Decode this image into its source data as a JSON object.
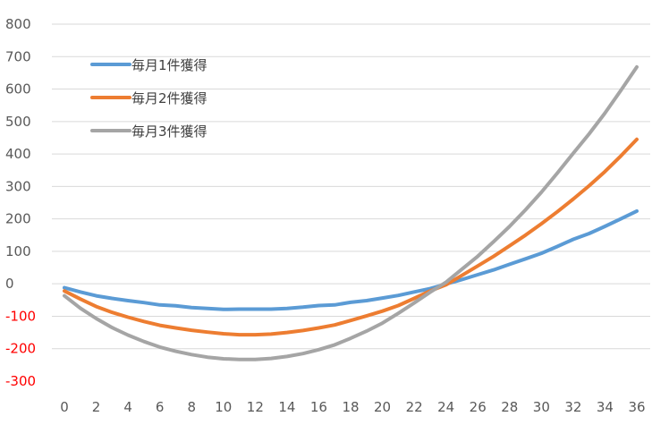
{
  "chart_data": {
    "type": "line",
    "title": "",
    "xlabel": "",
    "ylabel": "",
    "x": [
      0,
      1,
      2,
      3,
      4,
      5,
      6,
      7,
      8,
      9,
      10,
      11,
      12,
      13,
      14,
      15,
      16,
      17,
      18,
      19,
      20,
      21,
      22,
      23,
      24,
      25,
      26,
      27,
      28,
      29,
      30,
      31,
      32,
      33,
      34,
      35,
      36
    ],
    "xlim": [
      0,
      36
    ],
    "ylim": [
      -300,
      800
    ],
    "x_ticks": [
      0,
      2,
      4,
      6,
      8,
      10,
      12,
      14,
      16,
      18,
      20,
      22,
      24,
      26,
      28,
      30,
      32,
      34,
      36
    ],
    "y_ticks": [
      800,
      700,
      600,
      500,
      400,
      300,
      200,
      100,
      0,
      -100,
      -200,
      -300
    ],
    "negative_tick_color": "#ff0000",
    "grid": true,
    "legend_position": "top-left",
    "series": [
      {
        "name": "毎月1件獲得",
        "color": "#5b9bd5",
        "values": [
          -12,
          -25,
          -37,
          -45,
          -52,
          -58,
          -65,
          -68,
          -73,
          -76,
          -79,
          -78,
          -78,
          -78,
          -76,
          -72,
          -67,
          -65,
          -57,
          -52,
          -44,
          -36,
          -25,
          -15,
          -1,
          13,
          28,
          43,
          60,
          77,
          94,
          115,
          137,
          155,
          177,
          200,
          224
        ]
      },
      {
        "name": "毎月2件獲得",
        "color": "#ed7d31",
        "values": [
          -22,
          -47,
          -70,
          -88,
          -103,
          -116,
          -128,
          -136,
          -143,
          -149,
          -154,
          -157,
          -157,
          -155,
          -150,
          -144,
          -136,
          -127,
          -113,
          -99,
          -84,
          -67,
          -45,
          -22,
          -3,
          26,
          55,
          85,
          117,
          150,
          185,
          222,
          261,
          302,
          346,
          394,
          445
        ]
      },
      {
        "name": "毎月3件獲得",
        "color": "#a5a5a5",
        "values": [
          -37,
          -75,
          -107,
          -135,
          -158,
          -178,
          -195,
          -208,
          -218,
          -226,
          -231,
          -233,
          -233,
          -230,
          -224,
          -215,
          -203,
          -188,
          -168,
          -146,
          -121,
          -91,
          -59,
          -26,
          5,
          45,
          85,
          130,
          177,
          228,
          282,
          341,
          402,
          462,
          526,
          596,
          668
        ]
      }
    ]
  }
}
